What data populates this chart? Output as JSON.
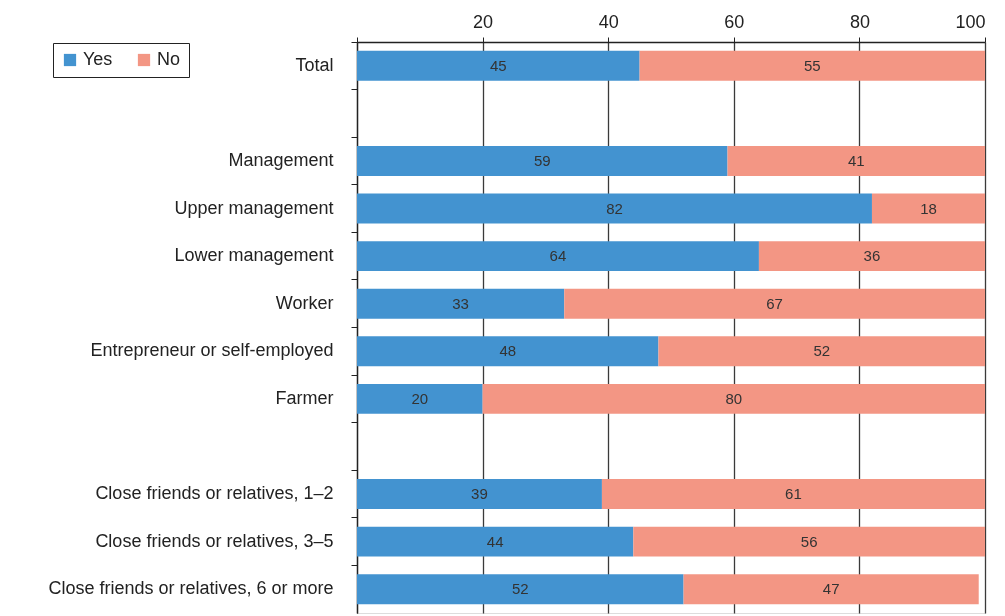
{
  "chart_data": {
    "type": "bar",
    "orientation": "horizontal",
    "stacked": true,
    "categories": [
      "Total",
      null,
      "Management",
      "Upper management",
      "Lower management",
      "Worker",
      "Entrepreneur or self-employed",
      "Farmer",
      null,
      "Close friends or relatives, 1–2",
      "Close friends or relatives, 3–5",
      "Close friends or relatives, 6 or more"
    ],
    "series": [
      {
        "name": "Yes",
        "color": "#4393d0",
        "values": [
          45,
          null,
          59,
          82,
          64,
          33,
          48,
          20,
          null,
          39,
          44,
          52
        ]
      },
      {
        "name": "No",
        "color": "#f39684",
        "values": [
          55,
          null,
          41,
          18,
          36,
          67,
          52,
          80,
          null,
          61,
          56,
          47
        ]
      }
    ],
    "xlim": [
      0,
      100
    ],
    "xticks": [
      {
        "value": 0,
        "label": null
      },
      20,
      40,
      60,
      80,
      100
    ],
    "grid": "x",
    "legend": "top left",
    "data_labels": true
  }
}
